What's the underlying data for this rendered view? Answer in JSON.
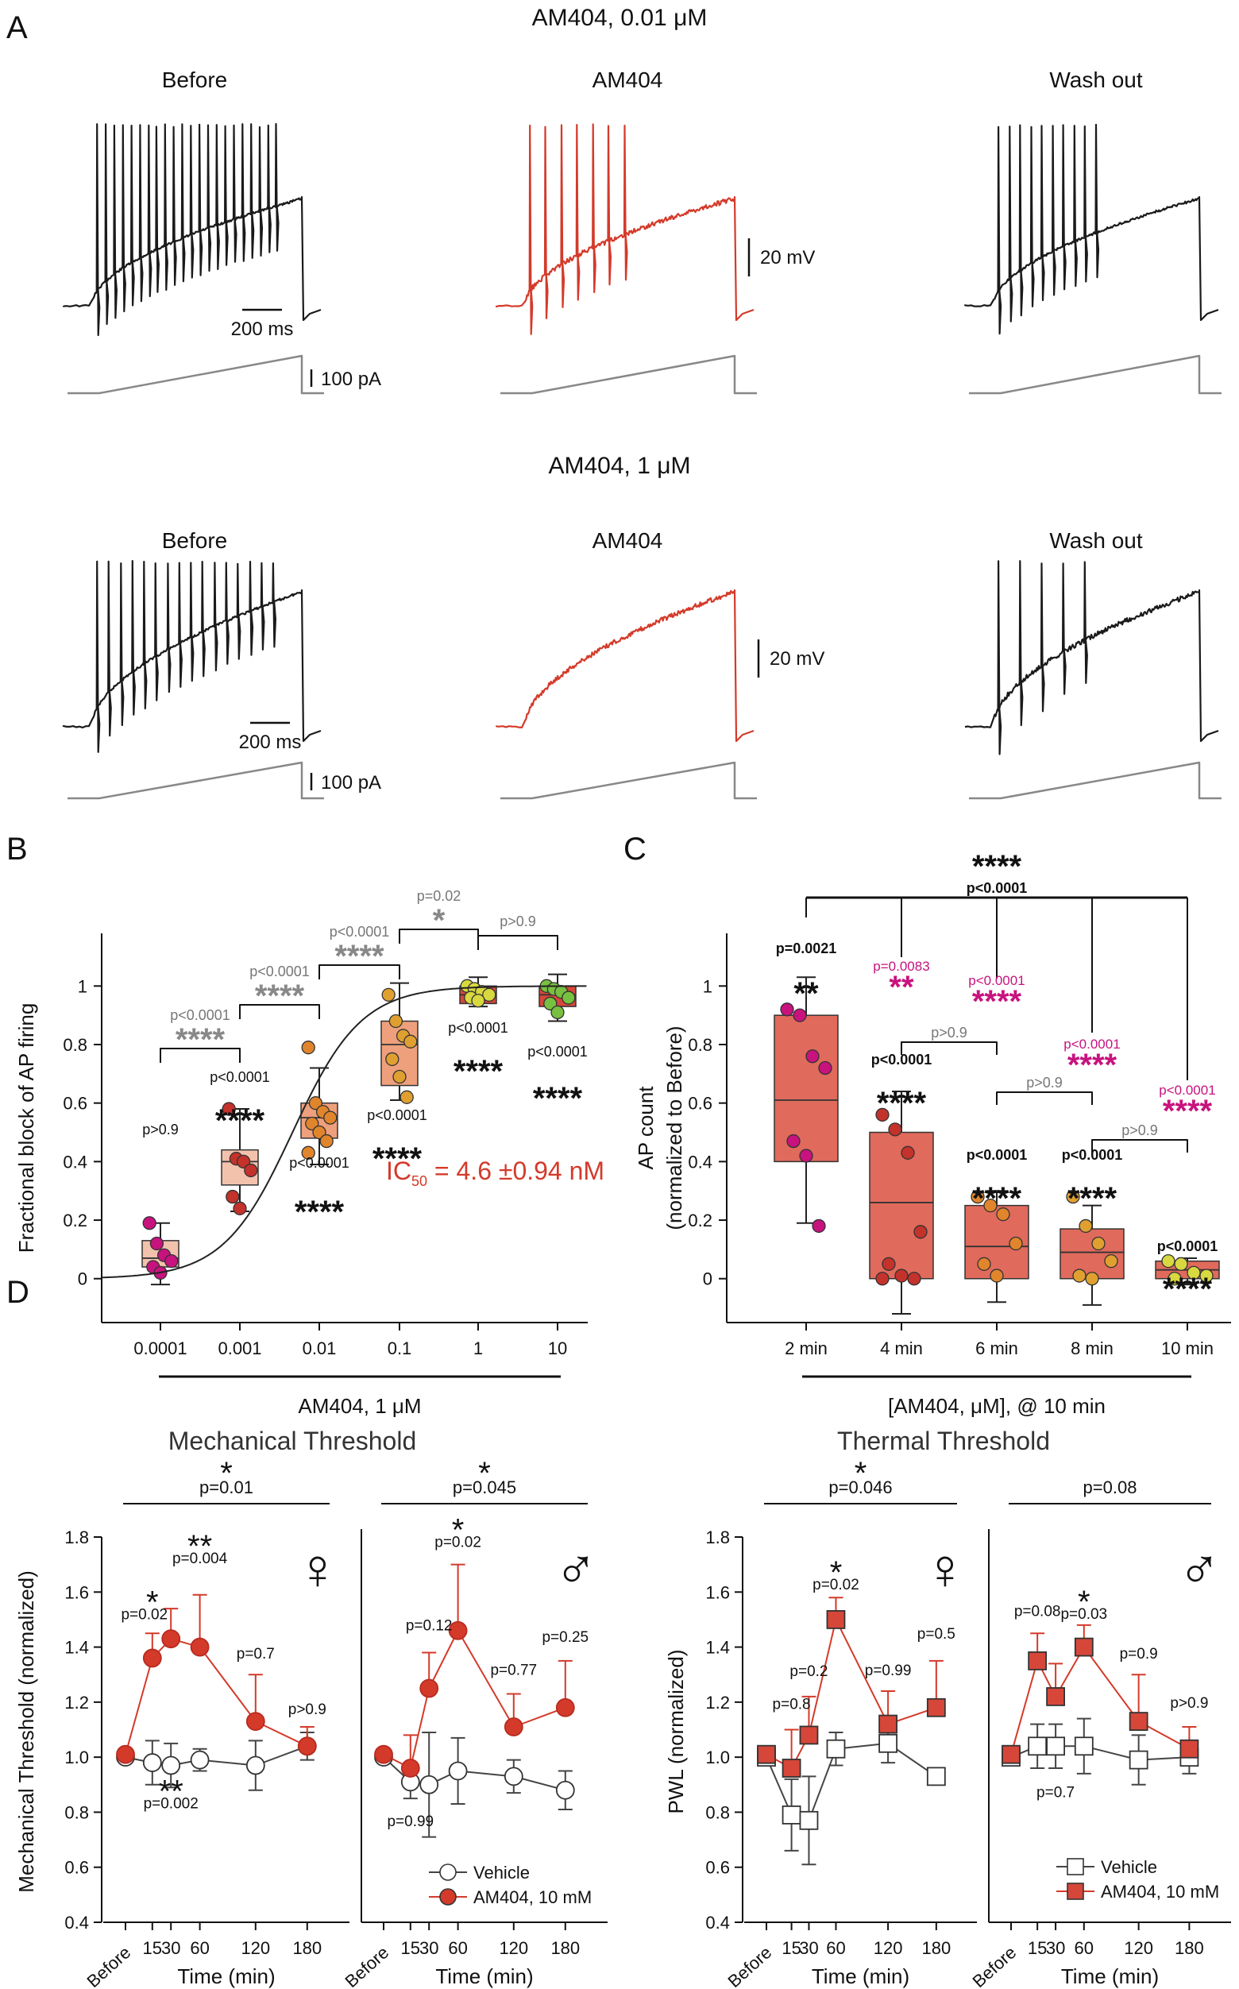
{
  "panel_letters": {
    "a": "A",
    "b": "B",
    "c": "C",
    "d": "D"
  },
  "panelA": {
    "title_low": "AM404, 0.01 μM",
    "title_high": "AM404, 1 μM",
    "col_before": "Before",
    "col_drug": "AM404",
    "col_wash": "Wash out",
    "scale_time": "200 ms",
    "scale_volt": "20 mV",
    "scale_current": "100 pA",
    "spike_counts": {
      "low": {
        "before": 22,
        "drug": 7,
        "wash": 10
      },
      "high": {
        "before": 16,
        "drug": 0,
        "wash": 5
      }
    }
  },
  "colors": {
    "black": "#1a1a1a",
    "red": "#d43a2a",
    "grey": "#888888",
    "magenta": "#c8127e",
    "pink": "#f3c2ad",
    "orange_box": "#eea07c",
    "red_box": "#e06a5c",
    "darkred_box": "#d6473a"
  },
  "chart_data": [
    {
      "id": "B",
      "type": "box",
      "ylabel": "Fractional block of AP firing",
      "xlabel": "AM404, 1 μM",
      "yticks": [
        "0",
        "0.2",
        "0.4",
        "0.6",
        "0.8",
        "1"
      ],
      "ylim": [
        -0.15,
        1.18
      ],
      "categories": [
        "0.0001",
        "0.001",
        "0.01",
        "0.1",
        "1",
        "10"
      ],
      "boxes": [
        {
          "cat": "0.0001",
          "q1": 0.04,
          "median": 0.07,
          "q3": 0.13,
          "min": -0.02,
          "max": 0.19,
          "points": [
            0.19,
            0.12,
            0.08,
            0.06,
            0.04,
            0.02
          ],
          "pcolor": "#c8127e"
        },
        {
          "cat": "0.001",
          "q1": 0.32,
          "median": 0.4,
          "q3": 0.44,
          "min": 0.23,
          "max": 0.58,
          "points": [
            0.58,
            0.41,
            0.4,
            0.37,
            0.28,
            0.24
          ],
          "pcolor": "#c4322c"
        },
        {
          "cat": "0.01",
          "q1": 0.48,
          "median": 0.55,
          "q3": 0.6,
          "min": 0.39,
          "max": 0.72,
          "points": [
            0.79,
            0.6,
            0.57,
            0.55,
            0.53,
            0.5,
            0.47,
            0.43
          ],
          "pcolor": "#e0852c"
        },
        {
          "cat": "0.1",
          "q1": 0.66,
          "median": 0.8,
          "q3": 0.88,
          "min": 0.61,
          "max": 1.01,
          "points": [
            0.97,
            0.88,
            0.83,
            0.81,
            0.75,
            0.69,
            0.62
          ],
          "pcolor": "#e0a030"
        },
        {
          "cat": "1",
          "q1": 0.94,
          "median": 0.97,
          "q3": 1.0,
          "min": 0.93,
          "max": 1.03,
          "points": [
            1.0,
            0.99,
            0.98,
            0.97,
            0.96,
            0.95
          ],
          "pcolor": "#d8d840"
        },
        {
          "cat": "10",
          "q1": 0.93,
          "median": 0.97,
          "q3": 1.0,
          "min": 0.88,
          "max": 1.04,
          "points": [
            1.0,
            0.99,
            0.98,
            0.96,
            0.94,
            0.91
          ],
          "pcolor": "#78c040"
        }
      ],
      "fit": {
        "ic50": 0.0046,
        "hill": 1.0
      },
      "ic50_label": "IC",
      "ic50_sub": "50",
      "ic50_value": " = 4.6 ±0.94 nM",
      "box_annot": [
        {
          "p": "p>0.9",
          "stars": ""
        },
        {
          "p": "p<0.0001",
          "stars": "****"
        },
        {
          "p": "p<0.0001",
          "stars": "****"
        },
        {
          "p": "p<0.0001",
          "stars": "****"
        },
        {
          "p": "p<0.0001",
          "stars": "****"
        },
        {
          "p": "p<0.0001",
          "stars": "****"
        }
      ],
      "bracket_annot": [
        {
          "p": "p<0.0001",
          "stars": "****"
        },
        {
          "p": "p<0.0001",
          "stars": "****"
        },
        {
          "p": "p<0.0001",
          "stars": "****"
        },
        {
          "p": "p=0.02",
          "stars": "*"
        },
        {
          "p": "p>0.9",
          "stars": ""
        }
      ]
    },
    {
      "id": "C",
      "type": "box",
      "ylabel1": "AP count",
      "ylabel2": "(normalized to Before)",
      "xlabel": "[AM404, μM], @ 10 min",
      "yticks": [
        "0",
        "0.2",
        "0.4",
        "0.6",
        "0.8",
        "1"
      ],
      "ylim": [
        -0.15,
        1.18
      ],
      "categories": [
        "2 min",
        "4 min",
        "6 min",
        "8 min",
        "10 min"
      ],
      "boxes": [
        {
          "cat": "2 min",
          "q1": 0.4,
          "median": 0.61,
          "q3": 0.9,
          "min": 0.19,
          "max": 1.03,
          "points": [
            0.92,
            0.9,
            0.76,
            0.72,
            0.47,
            0.42,
            0.18
          ],
          "pcolor": "#c8127e"
        },
        {
          "cat": "4 min",
          "q1": 0.0,
          "median": 0.26,
          "q3": 0.5,
          "min": -0.12,
          "max": 0.64,
          "points": [
            0.56,
            0.51,
            0.43,
            0.16,
            0.05,
            0.01,
            0.0,
            0.0
          ],
          "pcolor": "#c4322c"
        },
        {
          "cat": "6 min",
          "q1": 0.0,
          "median": 0.11,
          "q3": 0.25,
          "min": -0.08,
          "max": 0.3,
          "points": [
            0.28,
            0.25,
            0.22,
            0.12,
            0.05,
            0.01
          ],
          "pcolor": "#e0852c"
        },
        {
          "cat": "8 min",
          "q1": 0.0,
          "median": 0.09,
          "q3": 0.17,
          "min": -0.09,
          "max": 0.25,
          "points": [
            0.28,
            0.18,
            0.12,
            0.06,
            0.01,
            0.0
          ],
          "pcolor": "#e0a030"
        },
        {
          "cat": "10 min",
          "q1": 0.0,
          "median": 0.03,
          "q3": 0.06,
          "min": -0.02,
          "max": 0.07,
          "points": [
            0.06,
            0.05,
            0.02,
            0.01,
            0.0
          ],
          "pcolor": "#d8d840"
        }
      ],
      "box_annot": [
        {
          "p": "p=0.0021",
          "stars": "**"
        },
        {
          "p": "p<0.0001",
          "stars": "****"
        },
        {
          "p": "p<0.0001",
          "stars": "****"
        },
        {
          "p": "p<0.0001",
          "stars": "****"
        },
        {
          "p": "p<0.0001",
          "stars": "****"
        }
      ],
      "top_bracket": {
        "p": "p<0.0001",
        "stars": "****"
      },
      "magenta_annot": [
        {
          "p": "p=0.0083",
          "stars": "**"
        },
        {
          "p": "p<0.0001",
          "stars": "****"
        },
        {
          "p": "p<0.0001",
          "stars": "****"
        },
        {
          "p": "p<0.0001",
          "stars": "****"
        }
      ],
      "pair_annot": [
        "p>0.9",
        "p>0.9",
        "p>0.9"
      ]
    },
    {
      "id": "D",
      "type": "line",
      "x_labels": [
        "Before",
        "15",
        "30",
        "60",
        "120",
        "180"
      ],
      "x_hours": [
        0,
        15,
        30,
        60,
        120,
        180
      ],
      "xlabel": "Time (min)",
      "yticks": [
        "0.4",
        "0.6",
        "0.8",
        "1.0",
        "1.2",
        "1.4",
        "1.6",
        "1.8"
      ],
      "ylim": [
        0.4,
        1.8
      ],
      "groups": [
        {
          "title": "Mechanical Threshold",
          "ylabel": "Mechanical Threshold (normalized)",
          "marker": "circle",
          "panels": [
            {
              "sex": "♀",
              "top_stars": "*",
              "top_p": "p=0.01",
              "series": [
                {
                  "name": "Vehicle",
                  "values": [
                    1.0,
                    0.98,
                    0.97,
                    0.99,
                    0.97,
                    1.04
                  ],
                  "err": [
                    0.02,
                    0.08,
                    0.08,
                    0.04,
                    0.09,
                    0.05
                  ]
                },
                {
                  "name": "AM404, 10 mM",
                  "values": [
                    1.01,
                    1.36,
                    1.43,
                    1.4,
                    1.13,
                    1.04
                  ],
                  "err": [
                    0.02,
                    0.09,
                    0.11,
                    0.19,
                    0.17,
                    0.07
                  ]
                }
              ],
              "annots": [
                {
                  "i": 1,
                  "p": "p=0.02",
                  "stars": "*"
                },
                {
                  "i": 2,
                  "p": "p=0.002",
                  "stars": "**"
                },
                {
                  "i": 3,
                  "p": "p=0.004",
                  "stars": "**"
                },
                {
                  "i": 4,
                  "p": "p=0.7",
                  "stars": ""
                },
                {
                  "i": 5,
                  "p": "p>0.9",
                  "stars": ""
                }
              ]
            },
            {
              "sex": "♂",
              "top_stars": "*",
              "top_p": "p=0.045",
              "series": [
                {
                  "name": "Vehicle",
                  "values": [
                    1.0,
                    0.91,
                    0.9,
                    0.95,
                    0.93,
                    0.88
                  ],
                  "err": [
                    0.02,
                    0.06,
                    0.19,
                    0.12,
                    0.06,
                    0.07
                  ]
                },
                {
                  "name": "AM404, 10 mM",
                  "values": [
                    1.01,
                    0.96,
                    1.25,
                    1.46,
                    1.11,
                    1.18
                  ],
                  "err": [
                    0.02,
                    0.12,
                    0.13,
                    0.24,
                    0.12,
                    0.17
                  ]
                }
              ],
              "annots": [
                {
                  "i": 1,
                  "p": "p=0.99",
                  "stars": ""
                },
                {
                  "i": 2,
                  "p": "p=0.12",
                  "stars": ""
                },
                {
                  "i": 3,
                  "p": "p=0.02",
                  "stars": "*"
                },
                {
                  "i": 4,
                  "p": "p=0.77",
                  "stars": ""
                },
                {
                  "i": 5,
                  "p": "p=0.25",
                  "stars": ""
                }
              ]
            }
          ]
        },
        {
          "title": "Thermal Threshold",
          "ylabel": "PWL (normalized)",
          "marker": "square",
          "panels": [
            {
              "sex": "♀",
              "top_stars": "*",
              "top_p": "p=0.046",
              "series": [
                {
                  "name": "Vehicle",
                  "values": [
                    1.0,
                    0.79,
                    0.77,
                    1.03,
                    1.05,
                    0.93
                  ],
                  "err": [
                    0.02,
                    0.13,
                    0.16,
                    0.06,
                    0.07,
                    0.0
                  ]
                },
                {
                  "name": "AM404, 10 mM",
                  "values": [
                    1.01,
                    0.96,
                    1.08,
                    1.5,
                    1.12,
                    1.18
                  ],
                  "err": [
                    0.03,
                    0.14,
                    0.14,
                    0.08,
                    0.12,
                    0.17
                  ]
                }
              ],
              "annots": [
                {
                  "i": 1,
                  "p": "p=0.8",
                  "stars": ""
                },
                {
                  "i": 2,
                  "p": "p=0.2",
                  "stars": ""
                },
                {
                  "i": 3,
                  "p": "p=0.02",
                  "stars": "*"
                },
                {
                  "i": 4,
                  "p": "p=0.99",
                  "stars": ""
                },
                {
                  "i": 5,
                  "p": "p=0.5",
                  "stars": ""
                }
              ]
            },
            {
              "sex": "♂",
              "top_stars": "",
              "top_p": "p=0.08",
              "series": [
                {
                  "name": "Vehicle",
                  "values": [
                    1.0,
                    1.04,
                    1.04,
                    1.04,
                    0.99,
                    1.0
                  ],
                  "err": [
                    0.02,
                    0.08,
                    0.08,
                    0.1,
                    0.09,
                    0.06
                  ]
                },
                {
                  "name": "AM404, 10 mM",
                  "values": [
                    1.01,
                    1.35,
                    1.22,
                    1.4,
                    1.13,
                    1.03
                  ],
                  "err": [
                    0.02,
                    0.1,
                    0.12,
                    0.08,
                    0.17,
                    0.08
                  ]
                }
              ],
              "annots": [
                {
                  "i": 1,
                  "p": "p=0.08",
                  "stars": ""
                },
                {
                  "i": 2,
                  "p": "p=0.7",
                  "stars": ""
                },
                {
                  "i": 3,
                  "p": "p=0.03",
                  "stars": "*"
                },
                {
                  "i": 4,
                  "p": "p=0.9",
                  "stars": ""
                },
                {
                  "i": 5,
                  "p": "p>0.9",
                  "stars": ""
                }
              ]
            }
          ]
        }
      ],
      "legend": [
        "Vehicle",
        "AM404, 10 mM"
      ]
    }
  ]
}
